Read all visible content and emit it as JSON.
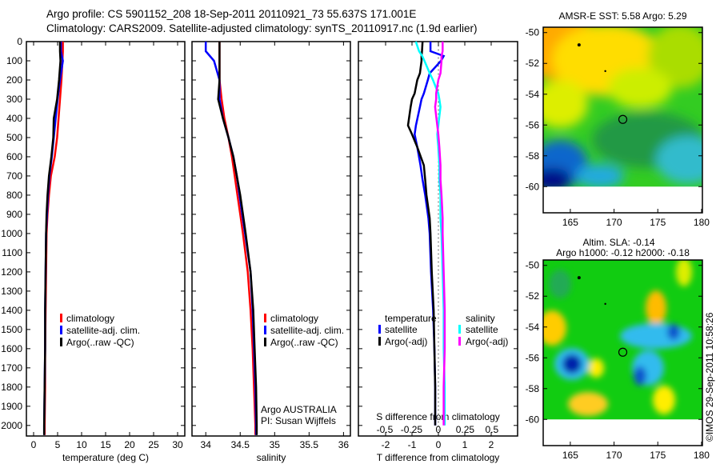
{
  "header": {
    "line1": "Argo profile: CS 5901152_208 18-Sep-2011 20110921_73 55.637S 171.001E",
    "line2": "Climatology: CARS2009. Satellite-adjusted climatology: synTS_20110917.nc (1.9d earlier)"
  },
  "colors": {
    "climatology": "#ff0000",
    "satellite": "#0000ff",
    "argo": "#000000",
    "sal_satellite": "#00ffff",
    "sal_argo": "#ff00ff"
  },
  "chart_data": [
    {
      "type": "line",
      "id": "temperature",
      "xlabel": "temperature (deg C)",
      "ylabel": "depth",
      "xlim": [
        -1.5,
        31.5
      ],
      "ylim": [
        2055,
        0
      ],
      "xticks": [
        0,
        5,
        10,
        15,
        20,
        25,
        30
      ],
      "yticks": [
        0,
        100,
        200,
        300,
        400,
        500,
        600,
        700,
        800,
        900,
        1000,
        1100,
        1200,
        1300,
        1400,
        1500,
        1600,
        1700,
        1800,
        1900,
        2000
      ],
      "legend": [
        "climatology",
        "satellite-adj. clim.",
        "Argo(..raw -QC)"
      ],
      "depth": [
        0,
        50,
        100,
        200,
        300,
        400,
        500,
        600,
        700,
        800,
        900,
        1000,
        1200,
        1400,
        1600,
        1800,
        2000,
        2050
      ],
      "series": [
        {
          "name": "climatology",
          "color": "#ff0000",
          "values": [
            6.1,
            6.1,
            6.0,
            5.8,
            5.5,
            5.2,
            4.9,
            4.4,
            3.6,
            3.2,
            2.9,
            2.7,
            2.6,
            2.5,
            2.4,
            2.4,
            2.3,
            2.3
          ]
        },
        {
          "name": "satellite-adj. clim.",
          "color": "#0000ff",
          "values": [
            5.7,
            5.7,
            6.1,
            5.5,
            5.0,
            4.6,
            4.2,
            3.8,
            3.3,
            3.0,
            2.8,
            2.6,
            2.5,
            2.4,
            2.4,
            2.3,
            2.2,
            2.2
          ]
        },
        {
          "name": "Argo(..raw -QC)",
          "color": "#000000",
          "values": [
            5.5,
            5.5,
            5.6,
            5.3,
            4.9,
            4.2,
            4.1,
            3.7,
            3.2,
            2.9,
            2.7,
            2.6,
            2.5,
            2.4,
            2.4,
            2.3,
            2.2,
            2.2
          ]
        }
      ]
    },
    {
      "type": "line",
      "id": "salinity",
      "xlabel": "salinity",
      "xlim": [
        33.8,
        36.1
      ],
      "ylim": [
        2055,
        0
      ],
      "xticks": [
        34,
        34.5,
        35,
        35.5,
        36
      ],
      "legend": [
        "climatology",
        "satellite-adj. clim.",
        "Argo(..raw -QC)"
      ],
      "annotation": [
        "Argo AUSTRALIA",
        "PI: Susan Wijffels"
      ],
      "depth": [
        0,
        50,
        100,
        200,
        300,
        400,
        500,
        600,
        700,
        800,
        900,
        1000,
        1200,
        1400,
        1600,
        1800,
        2000,
        2050
      ],
      "series": [
        {
          "name": "climatology",
          "color": "#ff0000",
          "values": [
            34.2,
            34.2,
            34.2,
            34.2,
            34.23,
            34.27,
            34.33,
            34.38,
            34.42,
            34.46,
            34.5,
            34.54,
            34.61,
            34.65,
            34.68,
            34.7,
            34.72,
            34.72
          ]
        },
        {
          "name": "satellite-adj. clim.",
          "color": "#0000ff",
          "values": [
            34.0,
            34.0,
            34.12,
            34.2,
            34.2,
            34.25,
            34.33,
            34.4,
            34.45,
            34.49,
            34.53,
            34.57,
            34.65,
            34.68,
            34.7,
            34.72,
            34.73,
            34.73
          ]
        },
        {
          "name": "Argo(..raw -QC)",
          "color": "#000000",
          "values": [
            34.2,
            34.2,
            34.2,
            34.2,
            34.18,
            34.25,
            34.33,
            34.4,
            34.45,
            34.5,
            34.54,
            34.58,
            34.65,
            34.69,
            34.71,
            34.73,
            34.74,
            34.74
          ]
        }
      ]
    },
    {
      "type": "line",
      "id": "difference",
      "xlabel": "T difference from climatology",
      "x2label": "S difference from climatology",
      "xlim": [
        -3.03,
        3.0
      ],
      "x2lim": [
        -0.746,
        0.74
      ],
      "ylim": [
        2055,
        0
      ],
      "xticks": [
        -2,
        -1,
        0,
        1,
        2
      ],
      "x2ticks": [
        -0.5,
        -0.25,
        0,
        0.25,
        0.5
      ],
      "x2ticklabels": [
        "-0.5",
        "-0.25",
        "0",
        "0.25",
        "0.5"
      ],
      "legend_temperature": {
        "heading": "temperature",
        "items": [
          "satellite",
          "Argo(-adj)"
        ]
      },
      "legend_salinity": {
        "heading": "salinity",
        "items": [
          "satellite",
          "Argo(-adj)"
        ]
      },
      "depth": [
        0,
        50,
        75,
        100,
        165,
        200,
        270,
        300,
        340,
        437,
        483,
        550,
        645,
        720,
        800,
        920,
        1000,
        1200,
        1400,
        1600,
        1800,
        2000
      ],
      "series": [
        {
          "name": "temperature satellite",
          "axis": "T",
          "color": "#0000ff",
          "values": [
            -0.3,
            -0.3,
            0.2,
            0.1,
            -0.33,
            -0.4,
            -0.55,
            -0.64,
            -0.7,
            -0.85,
            -0.9,
            -0.8,
            -0.68,
            -0.6,
            -0.5,
            -0.38,
            -0.33,
            -0.28,
            -0.2,
            -0.15,
            -0.12,
            -0.12
          ]
        },
        {
          "name": "temperature Argo(-adj)",
          "axis": "T",
          "color": "#000000",
          "values": [
            -0.6,
            -0.62,
            -0.64,
            -0.64,
            -0.7,
            -0.8,
            -0.9,
            -1.0,
            -1.05,
            -1.15,
            -1.0,
            -0.8,
            -0.55,
            -0.5,
            -0.45,
            -0.33,
            -0.3,
            -0.25,
            -0.18,
            -0.15,
            -0.12,
            -0.12
          ]
        },
        {
          "name": "salinity satellite",
          "axis": "S",
          "color": "#00ffff",
          "values": [
            -0.21,
            -0.18,
            -0.15,
            -0.13,
            -0.08,
            -0.05,
            0.0,
            0.01,
            0.02,
            0.0,
            -0.01,
            0.0,
            0.01,
            0.01,
            0.02,
            0.02,
            0.03,
            0.04,
            0.05,
            0.05,
            0.06,
            0.06
          ]
        },
        {
          "name": "salinity Argo(-adj)",
          "axis": "S",
          "color": "#ff00ff",
          "values": [
            0.04,
            0.04,
            0.03,
            0.03,
            0.02,
            0.0,
            -0.02,
            -0.02,
            -0.03,
            -0.01,
            0.0,
            0.01,
            0.02,
            0.02,
            0.03,
            0.04,
            0.04,
            0.05,
            0.06,
            0.06,
            0.05,
            0.05
          ]
        }
      ]
    },
    {
      "type": "heatmap",
      "id": "sst-map",
      "title": "AMSR-E SST: 5.58 Argo: 5.29",
      "xlim": [
        161.9,
        180.1
      ],
      "ylim": [
        -61.7,
        -49.65
      ],
      "xticks": [
        165,
        170,
        175,
        180
      ],
      "yticks": [
        -50,
        -52,
        -54,
        -56,
        -58,
        -60
      ],
      "profile_location": [
        171.001,
        -55.637
      ]
    },
    {
      "type": "heatmap",
      "id": "sla-map",
      "title": "Altim. SLA: -0.14",
      "subtitle": "Argo h1000: -0.12 h2000: -0.18",
      "xlim": [
        161.9,
        180.1
      ],
      "ylim": [
        -61.7,
        -49.65
      ],
      "xticks": [
        165,
        170,
        175,
        180
      ],
      "yticks": [
        -50,
        -52,
        -54,
        -56,
        -58,
        -60
      ],
      "profile_location": [
        171.001,
        -55.637
      ]
    }
  ],
  "footer": {
    "credit": "©IMOS 29-Sep-2011 10:58:26"
  }
}
